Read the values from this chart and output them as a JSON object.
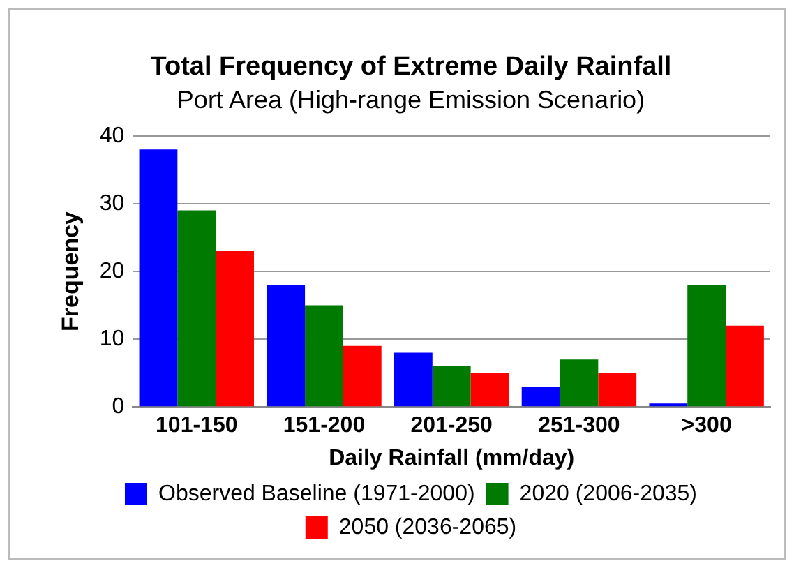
{
  "chart_data": {
    "type": "bar",
    "title": "Total Frequency of Extreme Daily Rainfall",
    "subtitle": "Port Area (High-range Emission Scenario)",
    "xlabel": "Daily Rainfall (mm/day)",
    "ylabel": "Frequency",
    "categories": [
      "101-150",
      "151-200",
      "201-250",
      "251-300",
      ">300"
    ],
    "series": [
      {
        "name": "Observed Baseline (1971-2000)",
        "color": "#0000ff",
        "values": [
          38,
          18,
          8,
          3,
          0.5
        ]
      },
      {
        "name": "2020 (2006-2035)",
        "color": "#007a00",
        "values": [
          29,
          15,
          6,
          7,
          18
        ]
      },
      {
        "name": "2050 (2036-2065)",
        "color": "#ff0000",
        "values": [
          23,
          9,
          5,
          5,
          12
        ]
      }
    ],
    "ylim": [
      0,
      40
    ],
    "yticks": [
      0,
      10,
      20,
      30,
      40
    ],
    "grid": "y",
    "legend": "bottom"
  }
}
